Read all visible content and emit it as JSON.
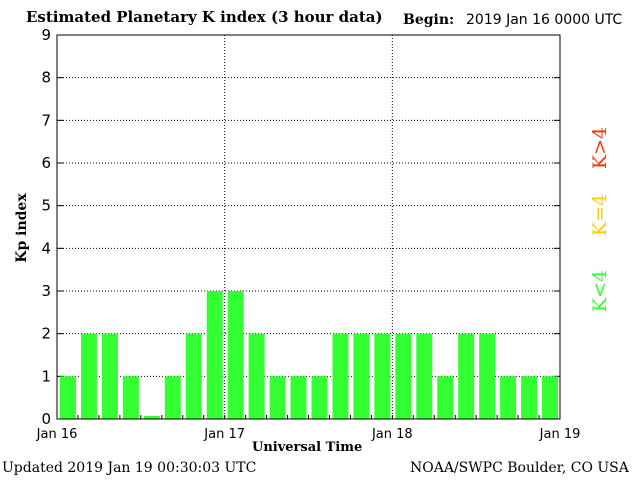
{
  "header": {
    "title": "Estimated Planetary K index (3 hour data)",
    "begin_label": "Begin:",
    "begin_value": "2019 Jan 16 0000 UTC"
  },
  "footer": {
    "updated": "Updated 2019 Jan 19 00:30:03 UTC",
    "credit": "NOAA/SWPC Boulder, CO USA"
  },
  "side_legend": [
    {
      "label": "K>4",
      "color": "#ff3300"
    },
    {
      "label": "K=4",
      "color": "#ffcc00"
    },
    {
      "label": "K<4",
      "color": "#33ff33"
    }
  ],
  "chart_data": {
    "type": "bar",
    "title": "Estimated Planetary K index (3 hour data)",
    "xlabel": "Universal Time",
    "ylabel": "Kp index",
    "ylim": [
      0,
      9
    ],
    "yticks": [
      0,
      1,
      2,
      3,
      4,
      5,
      6,
      7,
      8,
      9
    ],
    "xticks": [
      "Jan 16",
      "Jan 17",
      "Jan 18",
      "Jan 19"
    ],
    "bar_color": "#33ff33",
    "grid": "dotted at integer Kp and day boundaries",
    "values": [
      1,
      2,
      2,
      1,
      0.07,
      1,
      2,
      3,
      3,
      2,
      1,
      1,
      1,
      2,
      2,
      2,
      2,
      2,
      1,
      2,
      2,
      1,
      1,
      1
    ]
  }
}
